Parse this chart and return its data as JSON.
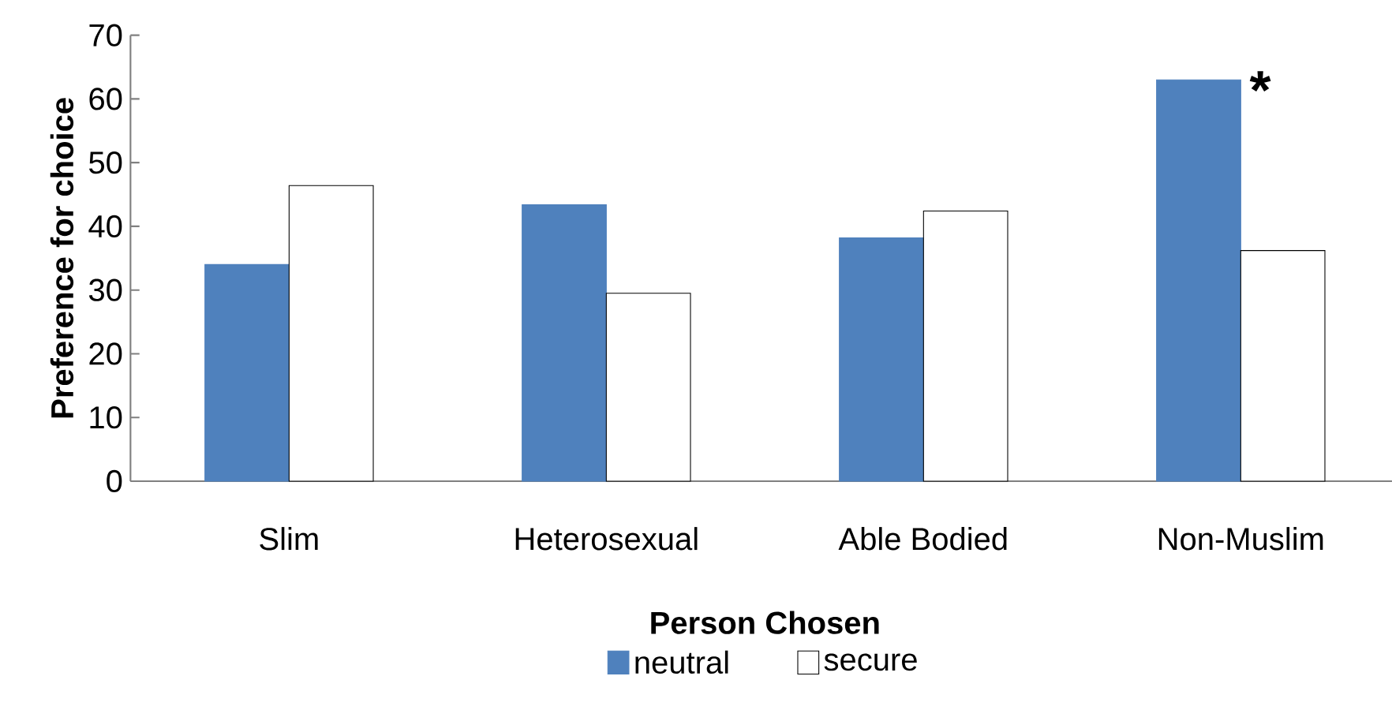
{
  "chart_data": {
    "type": "bar",
    "xlabel": "Person Chosen",
    "ylabel": "Preference for choice",
    "categories": [
      "Slim",
      "Heterosexual",
      "Able Bodied",
      "Non-Muslim"
    ],
    "series": [
      {
        "name": "neutral",
        "color": "#4f81bd",
        "values": [
          34.0,
          43.4,
          38.2,
          63.0
        ]
      },
      {
        "name": "secure",
        "color": "#ffffff",
        "values": [
          46.4,
          29.5,
          42.4,
          36.2
        ]
      }
    ],
    "ylim": [
      0,
      70
    ],
    "yticks": [
      0,
      10,
      20,
      30,
      40,
      50,
      60,
      70
    ],
    "annotations": [
      {
        "text": "*",
        "x": "Non-Muslim",
        "y": 63.0
      }
    ],
    "grid": false,
    "legend": "bottom"
  }
}
